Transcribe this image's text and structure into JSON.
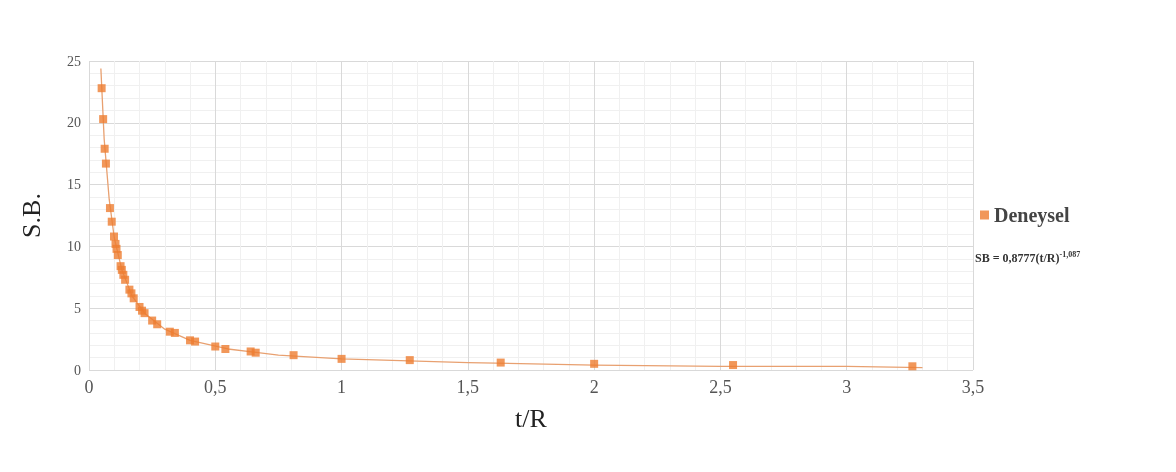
{
  "chart_data": {
    "type": "scatter",
    "xlabel": "t/R",
    "ylabel": "S.B.",
    "series": [
      {
        "name": "Deneysel",
        "color": "#ed7d31",
        "marker": "square",
        "x": [
          0.05,
          0.056,
          0.062,
          0.067,
          0.083,
          0.09,
          0.099,
          0.105,
          0.109,
          0.114,
          0.125,
          0.13,
          0.136,
          0.143,
          0.16,
          0.168,
          0.177,
          0.2,
          0.21,
          0.22,
          0.25,
          0.27,
          0.32,
          0.34,
          0.4,
          0.42,
          0.5,
          0.54,
          0.64,
          0.66,
          0.81,
          1.0,
          1.27,
          1.63,
          2.0,
          2.55,
          3.26
        ],
        "values": [
          22.8,
          20.3,
          17.9,
          16.7,
          13.1,
          12.0,
          10.8,
          10.2,
          9.8,
          9.3,
          8.4,
          8.1,
          7.7,
          7.3,
          6.5,
          6.2,
          5.8,
          5.1,
          4.8,
          4.6,
          4.0,
          3.7,
          3.1,
          3.0,
          2.4,
          2.3,
          1.9,
          1.7,
          1.5,
          1.4,
          1.2,
          0.9,
          0.8,
          0.6,
          0.5,
          0.4,
          0.3
        ]
      },
      {
        "type": "line",
        "color": "#e8a070",
        "marker": "none",
        "line_style": "solid",
        "x": [
          0.047,
          0.06,
          0.08,
          0.1,
          0.13,
          0.17,
          0.22,
          0.3,
          0.4,
          0.55,
          0.75,
          1.0,
          1.5,
          2.0,
          2.5,
          3.0,
          3.3
        ],
        "values": [
          24.4,
          18.7,
          13.8,
          10.7,
          8.1,
          6.0,
          4.6,
          3.3,
          2.4,
          1.7,
          1.2,
          0.9,
          0.6,
          0.4,
          0.3,
          0.3,
          0.2
        ]
      }
    ],
    "xlim": [
      0,
      3.5
    ],
    "xticks": [
      0,
      {
        "value": 0.5,
        "label": "0,5"
      },
      1,
      {
        "value": 1.5,
        "label": "1,5"
      },
      2,
      {
        "value": 2.5,
        "label": "2,5"
      },
      3,
      {
        "value": 3.5,
        "label": "3,5"
      }
    ],
    "ylim": [
      0,
      25
    ],
    "yticks": [
      0,
      5,
      10,
      15,
      20,
      25
    ],
    "grid": true,
    "legend": "right",
    "annotations": [
      "SB = 0,8777(t/R)$^{-1,087}$"
    ]
  }
}
